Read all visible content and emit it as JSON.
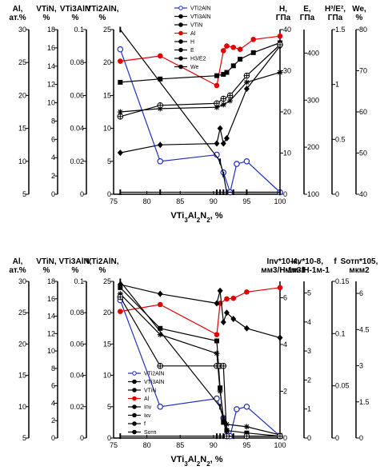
{
  "chart_data": [
    {
      "type": "line",
      "panel": "top",
      "xlabel": "VTi3Al2N2, %",
      "xlabel_parts": {
        "base": "VTi",
        "sub1": "3",
        "mid1": "Al",
        "sub2": "2",
        "mid2": "N",
        "sub3": "2",
        "tail": ", %"
      },
      "x_ticks": [
        "75",
        "80",
        "85",
        "90",
        "95",
        "100"
      ],
      "xlim": [
        75,
        100
      ],
      "axes": [
        {
          "id": "al",
          "side": "left",
          "title_lines": [
            "Al,",
            "ат.%"
          ],
          "ticks": [
            "5",
            "10",
            "15",
            "20",
            "25",
            "30"
          ],
          "ylim": [
            5,
            30
          ]
        },
        {
          "id": "vtin",
          "side": "left",
          "title_lines": [
            "VTiN,",
            "%"
          ],
          "ticks": [
            "0",
            "2",
            "4",
            "6",
            "8",
            "10",
            "12",
            "14",
            "16",
            "18"
          ],
          "ylim": [
            0,
            18
          ]
        },
        {
          "id": "vti3",
          "side": "left",
          "title_lines": [
            "VTi3AlN",
            "%"
          ],
          "ticks": [
            "0",
            "0.02",
            "0.04",
            "0.06",
            "0.08",
            "0.1"
          ],
          "ylim": [
            0,
            0.1
          ]
        },
        {
          "id": "main",
          "side": "left",
          "title_lines": [
            "VTi2AlN,",
            "%"
          ],
          "ticks": [
            "0",
            "5",
            "10",
            "15",
            "20",
            "25"
          ],
          "ylim": [
            0,
            25
          ]
        },
        {
          "id": "h",
          "side": "right",
          "title_lines": [
            "H,",
            "ГПа"
          ],
          "ticks": [
            "0",
            "10",
            "20",
            "30",
            "40"
          ],
          "ylim": [
            0,
            40
          ]
        },
        {
          "id": "e",
          "side": "right",
          "title_lines": [
            "E,",
            "ГПа"
          ],
          "ticks": [
            "100",
            "200",
            "300",
            "400"
          ],
          "ylim": [
            100,
            450
          ]
        },
        {
          "id": "h3e2",
          "side": "right",
          "title_lines": [
            "H³/E²,",
            "ГПа"
          ],
          "ticks": [
            "0",
            "0.5",
            "1",
            "1.5"
          ],
          "ylim": [
            0,
            1.5
          ]
        },
        {
          "id": "we",
          "side": "right",
          "title_lines": [
            "We,",
            "%"
          ],
          "ticks": [
            "40",
            "50",
            "60",
            "70",
            "80"
          ],
          "ylim": [
            40,
            80
          ]
        }
      ],
      "series": [
        {
          "name": "VTi2AlN",
          "x": [
            76,
            82,
            90.5,
            91.5,
            92.5,
            93.5,
            95,
            100
          ],
          "y": [
            22,
            5,
            6,
            3.3,
            0.3,
            4.6,
            5,
            0.3
          ],
          "color": "#1f2fbf",
          "marker": "open-circle",
          "axis_scale": [
            0,
            25
          ]
        },
        {
          "name": "VTi3AlN",
          "x": [
            76,
            91,
            91.5,
            92,
            93,
            100
          ],
          "y": [
            25,
            5,
            3,
            0.3,
            0.3,
            0.3
          ],
          "color": "#000000",
          "marker": "bar",
          "axis_scale": [
            0,
            25
          ]
        },
        {
          "name": "VTiN",
          "x": [
            76,
            82,
            90.5,
            91,
            91.5,
            92,
            95,
            100
          ],
          "y": [
            0.3,
            0.3,
            0.3,
            0.3,
            0.3,
            0.3,
            0.3,
            0.3
          ],
          "color": "#000000",
          "marker": "bar",
          "axis_scale": [
            0,
            25
          ]
        },
        {
          "name": "Al",
          "x": [
            76,
            82,
            90.5,
            91.5,
            92,
            93,
            94,
            96,
            100
          ],
          "y": [
            20.2,
            21,
            16.5,
            21.8,
            22.5,
            22.3,
            22,
            23.5,
            24
          ],
          "color": "#e00000",
          "marker": "filled-circle",
          "axis_scale": [
            0,
            25
          ]
        },
        {
          "name": "H",
          "x": [
            76,
            82,
            90.5,
            91.5,
            92,
            93,
            94,
            96,
            100
          ],
          "y": [
            17,
            17.5,
            18,
            18.2,
            18.5,
            19.5,
            20.5,
            21.5,
            23
          ],
          "color": "#000000",
          "marker": "filled-square",
          "axis_scale": [
            0,
            25
          ]
        },
        {
          "name": "E",
          "x": [
            76,
            82,
            90.5,
            91.5,
            92.5,
            95,
            100
          ],
          "y": [
            12.5,
            13,
            13.2,
            13.6,
            14.2,
            17,
            18.5
          ],
          "color": "#000000",
          "marker": "star",
          "axis_scale": [
            0,
            25
          ]
        },
        {
          "name": "H3/E2",
          "x": [
            76,
            82,
            90.5,
            91,
            91.5,
            92,
            95,
            100
          ],
          "y": [
            6.3,
            7.5,
            7.7,
            10,
            7.7,
            8.5,
            16,
            22.5
          ],
          "color": "#000000",
          "marker": "filled-diamond",
          "axis_scale": [
            0,
            25
          ]
        },
        {
          "name": "We",
          "x": [
            76,
            82,
            90.5,
            91.5,
            92.5,
            95,
            100
          ],
          "y": [
            11.8,
            13.5,
            13.8,
            14.5,
            15,
            18,
            22.7
          ],
          "color": "#000000",
          "marker": "circle-cross",
          "axis_scale": [
            0,
            25
          ]
        }
      ]
    },
    {
      "type": "line",
      "panel": "bottom",
      "xlabel": "VTi3Al2N2, %",
      "xlabel_parts": {
        "base": "VTi",
        "sub1": "3",
        "mid1": "Al",
        "sub2": "2",
        "mid2": "N",
        "sub3": "2",
        "tail": ", %"
      },
      "x_ticks": [
        "75",
        "80",
        "85",
        "90",
        "95",
        "100"
      ],
      "xlim": [
        75,
        100
      ],
      "axes": [
        {
          "id": "al",
          "side": "left",
          "title_lines": [
            "Al,",
            "ат.%"
          ],
          "ticks": [
            "5",
            "10",
            "15",
            "20",
            "25",
            "30"
          ],
          "ylim": [
            5,
            30
          ]
        },
        {
          "id": "vtin",
          "side": "left",
          "title_lines": [
            "VTiN,",
            "%"
          ],
          "ticks": [
            "0",
            "2",
            "4",
            "6",
            "8",
            "10",
            "12",
            "14",
            "16",
            "18"
          ],
          "ylim": [
            0,
            18
          ]
        },
        {
          "id": "vti3",
          "side": "left",
          "title_lines": [
            "VTi3AlN,",
            "%"
          ],
          "ticks": [
            "0",
            "0.02",
            "0.04",
            "0.06",
            "0.08",
            "0.1"
          ],
          "ylim": [
            0,
            0.1
          ]
        },
        {
          "id": "main",
          "side": "left",
          "title_lines": [
            "VTi2AlN,",
            "%"
          ],
          "ticks": [
            "0",
            "5",
            "10",
            "15",
            "20",
            "25"
          ],
          "ylim": [
            0,
            25
          ]
        },
        {
          "id": "ip",
          "side": "right",
          "title_lines": [
            "Iпv*10-4,",
            "мм3/Н-1м-1"
          ],
          "ticks": [
            "0",
            "2",
            "4",
            "6"
          ],
          "ylim": [
            0,
            6.7
          ]
        },
        {
          "id": "ik",
          "side": "right",
          "title_lines": [
            "Iкv*10-8,",
            "мм3/Н-1м-1"
          ],
          "ticks": [
            "0",
            "1",
            "2",
            "3",
            "4",
            "5"
          ],
          "ylim": [
            0,
            5.4
          ]
        },
        {
          "id": "f",
          "side": "right",
          "title_lines": [
            "f"
          ],
          "ticks": [
            "0",
            "0.05",
            "0.1",
            "0.15"
          ],
          "ylim": [
            0,
            0.15
          ]
        },
        {
          "id": "sotp",
          "side": "right",
          "title_lines": [
            "Sотп*105,",
            "мкм2"
          ],
          "ticks": [
            "0",
            "1.5",
            "3",
            "4.5",
            "6"
          ],
          "ylim": [
            0,
            6.5
          ]
        }
      ],
      "series": [
        {
          "name": "VTi2AlN",
          "x": [
            76,
            82,
            90.5,
            91.5,
            92.5,
            93.5,
            95,
            100
          ],
          "y": [
            22,
            5,
            6.3,
            3.2,
            0.3,
            4.6,
            5,
            0.3
          ],
          "color": "#1f2fbf",
          "marker": "open-circle",
          "axis_scale": [
            0,
            25
          ]
        },
        {
          "name": "VTi3AlN",
          "x": [
            76,
            91,
            91.5,
            92,
            93,
            100
          ],
          "y": [
            25,
            5,
            3,
            0.3,
            0.3,
            0.3
          ],
          "color": "#000000",
          "marker": "bar",
          "axis_scale": [
            0,
            25
          ]
        },
        {
          "name": "VTiN",
          "x": [
            76,
            90.5,
            91,
            91.5,
            92,
            95,
            100
          ],
          "y": [
            0.3,
            0.3,
            0.3,
            0.3,
            0.3,
            0.3,
            0.3
          ],
          "color": "#000000",
          "marker": "bar",
          "axis_scale": [
            0,
            25
          ]
        },
        {
          "name": "Al",
          "x": [
            76,
            82,
            90.5,
            91,
            92,
            93,
            95,
            100
          ],
          "y": [
            20.2,
            21.3,
            16.5,
            21.5,
            22.2,
            22.3,
            23.3,
            24
          ],
          "color": "#e00000",
          "marker": "filled-circle",
          "axis_scale": [
            0,
            25
          ]
        },
        {
          "name": "Iпv",
          "x": [
            76,
            82,
            90.5,
            91,
            91.5,
            92,
            95,
            100
          ],
          "y": [
            24,
            17.5,
            15.5,
            8,
            2.5,
            1.2,
            0.8,
            0.3
          ],
          "color": "#000000",
          "marker": "filled-square",
          "axis_scale": [
            0,
            25
          ]
        },
        {
          "name": "Iкv",
          "x": [
            76,
            82,
            90.5,
            91,
            91.5,
            92,
            95,
            100
          ],
          "y": [
            23,
            16.5,
            13.5,
            7.5,
            3.2,
            2.2,
            1.8,
            0.5
          ],
          "color": "#000000",
          "marker": "star",
          "axis_scale": [
            0,
            25
          ]
        },
        {
          "name": "f",
          "x": [
            76,
            82,
            90.5,
            91,
            91.5,
            92,
            93,
            95,
            100
          ],
          "y": [
            24.5,
            23,
            21.5,
            23.5,
            18.5,
            20,
            19,
            17.5,
            16
          ],
          "color": "#000000",
          "marker": "filled-diamond",
          "axis_scale": [
            0,
            25
          ]
        },
        {
          "name": "Sотп",
          "x": [
            76,
            82,
            90.5,
            91,
            91.5,
            92,
            95,
            100
          ],
          "y": [
            22.5,
            11.5,
            11.5,
            11.5,
            11.5,
            0.3,
            0.3,
            0.3
          ],
          "color": "#000000",
          "marker": "circle-cross",
          "axis_scale": [
            0,
            25
          ]
        }
      ]
    }
  ]
}
